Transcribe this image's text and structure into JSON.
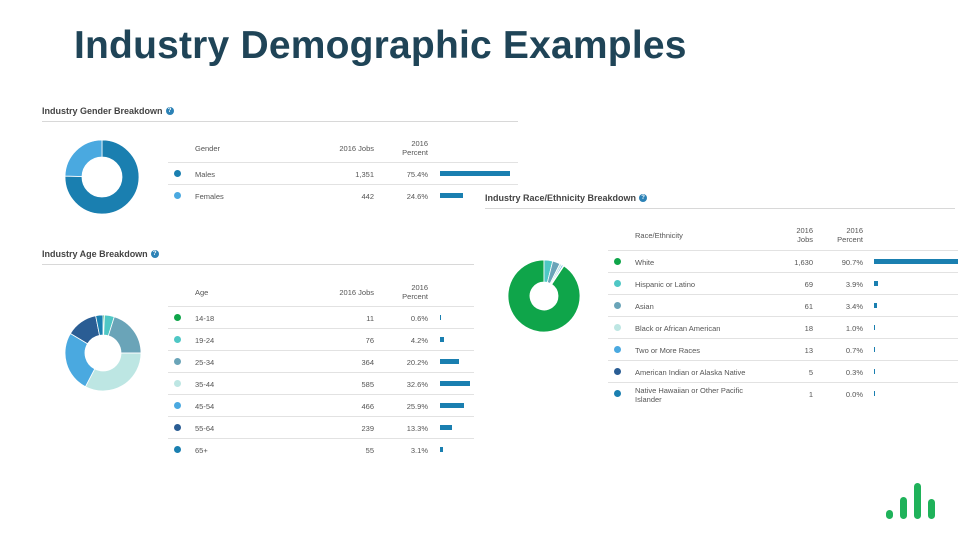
{
  "slide_title": "Industry Demographic Examples",
  "gender": {
    "title": "Industry Gender Breakdown",
    "help_icon": "?",
    "headers": {
      "label": "Gender",
      "jobs": "2016 Jobs",
      "pct_line1": "2016",
      "pct_line2": "Percent"
    },
    "rows": [
      {
        "label": "Males",
        "jobs": "1,351",
        "percent": "75.4%",
        "value": 75.4,
        "color": "#1a7fb0"
      },
      {
        "label": "Females",
        "jobs": "442",
        "percent": "24.6%",
        "value": 24.6,
        "color": "#4aa9e0"
      }
    ]
  },
  "age": {
    "title": "Industry Age Breakdown",
    "help_icon": "?",
    "headers": {
      "label": "Age",
      "jobs": "2016 Jobs",
      "pct_line1": "2016",
      "pct_line2": "Percent"
    },
    "rows": [
      {
        "label": "14-18",
        "jobs": "11",
        "percent": "0.6%",
        "value": 0.6,
        "color": "#0fa54a"
      },
      {
        "label": "19-24",
        "jobs": "76",
        "percent": "4.2%",
        "value": 4.2,
        "color": "#4fc7c5"
      },
      {
        "label": "25-34",
        "jobs": "364",
        "percent": "20.2%",
        "value": 20.2,
        "color": "#6aa4b8"
      },
      {
        "label": "35-44",
        "jobs": "585",
        "percent": "32.6%",
        "value": 32.6,
        "color": "#bde6e3"
      },
      {
        "label": "45-54",
        "jobs": "466",
        "percent": "25.9%",
        "value": 25.9,
        "color": "#4aa9e0"
      },
      {
        "label": "55-64",
        "jobs": "239",
        "percent": "13.3%",
        "value": 13.3,
        "color": "#2a5d94"
      },
      {
        "label": "65+",
        "jobs": "55",
        "percent": "3.1%",
        "value": 3.1,
        "color": "#1a7fb0"
      }
    ]
  },
  "race": {
    "title": "Industry Race/Ethnicity Breakdown",
    "help_icon": "?",
    "headers": {
      "label": "Race/Ethnicity",
      "jobs_line1": "2016",
      "jobs_line2": "Jobs",
      "pct_line1": "2016",
      "pct_line2": "Percent"
    },
    "rows": [
      {
        "label": "White",
        "jobs": "1,630",
        "percent": "90.7%",
        "value": 90.7,
        "color": "#0fa54a"
      },
      {
        "label": "Hispanic or Latino",
        "jobs": "69",
        "percent": "3.9%",
        "value": 3.9,
        "color": "#4fc7c5"
      },
      {
        "label": "Asian",
        "jobs": "61",
        "percent": "3.4%",
        "value": 3.4,
        "color": "#6aa4b8"
      },
      {
        "label": "Black or African American",
        "jobs": "18",
        "percent": "1.0%",
        "value": 1.0,
        "color": "#bde6e3"
      },
      {
        "label": "Two or More Races",
        "jobs": "13",
        "percent": "0.7%",
        "value": 0.7,
        "color": "#4aa9e0"
      },
      {
        "label": "American Indian or Alaska Native",
        "jobs": "5",
        "percent": "0.3%",
        "value": 0.3,
        "color": "#2a5d94"
      },
      {
        "label": "Native Hawaiian or Other Pacific",
        "label_line2": "Islander",
        "jobs": "1",
        "percent": "0.0%",
        "value": 0.0,
        "color": "#1a7fb0"
      }
    ]
  },
  "logo": {
    "icon": "bar-chart-logo-icon",
    "color": "#1fb25a"
  }
}
